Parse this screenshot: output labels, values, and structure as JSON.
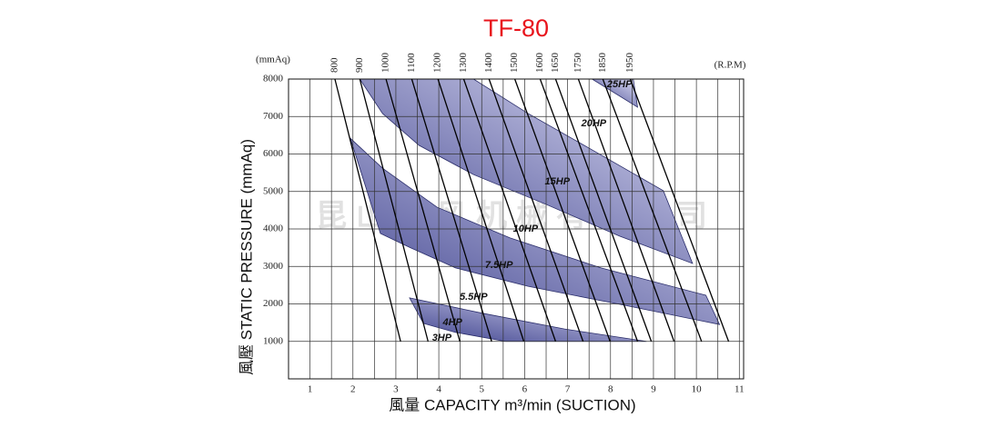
{
  "chart_data": {
    "type": "performance",
    "title": "TF-80",
    "title_color": "#e8141c",
    "watermark": "昆山大风机械有限公司",
    "x_label": "風量  CAPACITY  m³/min (SUCTION)",
    "y_label": "風壓  STATIC  PRESSURE  (mmAq)",
    "y_unit": "(mmAq)",
    "rpm_unit": "(R.P.M)",
    "xlim": [
      0.5,
      11.1
    ],
    "ylim": [
      0,
      8000
    ],
    "xticks": [
      1,
      2,
      3,
      4,
      5,
      6,
      7,
      8,
      9,
      10,
      11
    ],
    "yticks": [
      1000,
      2000,
      3000,
      4000,
      5000,
      6000,
      7000,
      8000
    ],
    "grid": true,
    "region_colors": [
      "#3f438f",
      "#dcdcf3"
    ],
    "regions": [
      {
        "x": [
          7.57,
          8.53,
          8.63
        ],
        "values": [
          8000,
          8000,
          7250
        ]
      },
      {
        "x": [
          2.16,
          4.81,
          6.08,
          7.57,
          9.23,
          9.91,
          8.21,
          6.51,
          4.81,
          3.54,
          2.69
        ],
        "values": [
          8000,
          8000,
          7080,
          6110,
          5020,
          3080,
          3810,
          4650,
          5450,
          6230,
          7080
        ]
      },
      {
        "x": [
          1.94,
          2.69,
          3.96,
          5.66,
          7.78,
          10.22,
          10.54,
          8.21,
          6.08,
          4.39,
          3.32,
          2.64
        ],
        "values": [
          6420,
          5620,
          4580,
          3760,
          2960,
          2230,
          1450,
          1990,
          2470,
          2960,
          3510,
          3880
        ]
      },
      {
        "x": [
          3.32,
          5.02,
          6.93,
          8.84,
          5.55,
          4.39,
          3.64
        ],
        "values": [
          2160,
          1750,
          1330,
          1000,
          1000,
          1240,
          1480
        ]
      }
    ],
    "rpm_lines": [
      {
        "name": "800",
        "x": [
          1.58,
          3.11
        ],
        "values": [
          8000,
          1000
        ]
      },
      {
        "name": "900",
        "x": [
          2.16,
          3.75
        ],
        "values": [
          8000,
          1000
        ]
      },
      {
        "name": "1000",
        "x": [
          2.77,
          4.49
        ],
        "values": [
          8000,
          1000
        ]
      },
      {
        "name": "1100",
        "x": [
          3.37,
          5.23
        ],
        "values": [
          8000,
          1000
        ]
      },
      {
        "name": "1200",
        "x": [
          3.98,
          5.98
        ],
        "values": [
          8000,
          1000
        ]
      },
      {
        "name": "1300",
        "x": [
          4.58,
          6.72
        ],
        "values": [
          8000,
          1000
        ]
      },
      {
        "name": "1400",
        "x": [
          5.17,
          7.36
        ],
        "values": [
          8000,
          1000
        ]
      },
      {
        "name": "1500",
        "x": [
          5.77,
          7.99
        ],
        "values": [
          8000,
          1000
        ]
      },
      {
        "name": "1600",
        "x": [
          6.36,
          8.63
        ],
        "values": [
          8000,
          1000
        ]
      },
      {
        "name": "1650",
        "x": [
          6.72,
          8.95
        ],
        "values": [
          8000,
          1000
        ]
      },
      {
        "name": "1750",
        "x": [
          7.25,
          9.48
        ],
        "values": [
          8000,
          1000
        ]
      },
      {
        "name": "1850",
        "x": [
          7.82,
          10.12
        ],
        "values": [
          8000,
          1000
        ]
      },
      {
        "name": "1950",
        "x": [
          8.46,
          10.75
        ],
        "values": [
          8000,
          1000
        ]
      }
    ],
    "hp_labels": [
      {
        "text": "25HP",
        "x": 8.21,
        "y": 7850
      },
      {
        "text": "20HP",
        "x": 7.61,
        "y": 6810
      },
      {
        "text": "15HP",
        "x": 6.76,
        "y": 5260
      },
      {
        "text": "10HP",
        "x": 6.02,
        "y": 4000
      },
      {
        "text": "7.5HP",
        "x": 5.4,
        "y": 3030
      },
      {
        "text": "5.5HP",
        "x": 4.81,
        "y": 2180
      },
      {
        "text": "4HP",
        "x": 4.32,
        "y": 1500
      },
      {
        "text": "3HP",
        "x": 4.07,
        "y": 1090
      }
    ]
  }
}
